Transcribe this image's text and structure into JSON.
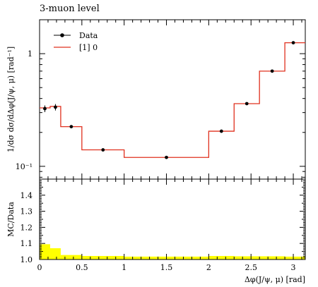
{
  "title": "3-muon level",
  "chart_data": [
    {
      "type": "scatter",
      "panel": "main",
      "ylabel": "1/dσ dσ/dΔφ(J/ψ, μ) [rad⁻¹]",
      "yscale": "log",
      "ylim": [
        0.077,
        2.0
      ],
      "xlim": [
        0,
        3.1416
      ],
      "ytick_labels": [
        {
          "value": 1,
          "label": "1"
        },
        {
          "value": 0.1,
          "label": "10⁻¹"
        }
      ],
      "legend": {
        "placement": "top-left",
        "entries": [
          {
            "name": "Data",
            "color": "#000000",
            "kind": "points"
          },
          {
            "name": "[1] 0",
            "color": "#e0301e",
            "kind": "line"
          }
        ]
      },
      "series": [
        {
          "name": "Data",
          "color": "#000000",
          "points": [
            {
              "x": 0.0625,
              "y": 0.325,
              "err": 0.022
            },
            {
              "x": 0.1875,
              "y": 0.335,
              "err": 0.022
            },
            {
              "x": 0.375,
              "y": 0.225,
              "err": 0.006
            },
            {
              "x": 0.75,
              "y": 0.14,
              "err": 0.003
            },
            {
              "x": 1.5,
              "y": 0.12,
              "err": 0.002
            },
            {
              "x": 2.15,
              "y": 0.205,
              "err": 0.004
            },
            {
              "x": 2.45,
              "y": 0.36,
              "err": 0.006
            },
            {
              "x": 2.75,
              "y": 0.7,
              "err": 0.01
            },
            {
              "x": 3.0,
              "y": 1.25,
              "err": 0.015
            }
          ]
        },
        {
          "name": "[1] 0",
          "color": "#e0301e",
          "bins": [
            {
              "x0": 0.0,
              "x1": 0.125,
              "y": 0.33
            },
            {
              "x0": 0.125,
              "x1": 0.25,
              "y": 0.34
            },
            {
              "x0": 0.25,
              "x1": 0.5,
              "y": 0.225
            },
            {
              "x0": 0.5,
              "x1": 1.0,
              "y": 0.14
            },
            {
              "x0": 1.0,
              "x1": 2.0,
              "y": 0.12
            },
            {
              "x0": 2.0,
              "x1": 2.3,
              "y": 0.205
            },
            {
              "x0": 2.3,
              "x1": 2.6,
              "y": 0.36
            },
            {
              "x0": 2.6,
              "x1": 2.9,
              "y": 0.7
            },
            {
              "x0": 2.9,
              "x1": 3.1416,
              "y": 1.25
            }
          ]
        }
      ]
    },
    {
      "type": "area",
      "panel": "ratio",
      "ylabel": "MC/Data",
      "xlabel": "Δφ(J/ψ, μ) [rad]",
      "ylim": [
        1.0,
        1.5
      ],
      "xlim": [
        0,
        3.1416
      ],
      "yticks": [
        1.0,
        1.1,
        1.2,
        1.3,
        1.4
      ],
      "ytick_labels": [
        "1.0",
        "1.1",
        "1.2",
        "1.3",
        "1.4"
      ],
      "xticks": [
        0,
        0.5,
        1,
        1.5,
        2,
        2.5,
        3
      ],
      "xtick_labels": [
        "0",
        "0.5",
        "1",
        "1.5",
        "2",
        "2.5",
        "3"
      ],
      "band_color": "#ffff00",
      "band": [
        {
          "x0": 0.0,
          "x1": 0.125,
          "y": 1.095
        },
        {
          "x0": 0.125,
          "x1": 0.25,
          "y": 1.07
        },
        {
          "x0": 0.25,
          "x1": 0.5,
          "y": 1.028
        },
        {
          "x0": 0.5,
          "x1": 1.0,
          "y": 1.022
        },
        {
          "x0": 1.0,
          "x1": 2.0,
          "y": 1.018
        },
        {
          "x0": 2.0,
          "x1": 2.3,
          "y": 1.022
        },
        {
          "x0": 2.3,
          "x1": 2.6,
          "y": 1.02
        },
        {
          "x0": 2.6,
          "x1": 2.9,
          "y": 1.02
        },
        {
          "x0": 2.9,
          "x1": 3.1416,
          "y": 1.018
        }
      ]
    }
  ]
}
